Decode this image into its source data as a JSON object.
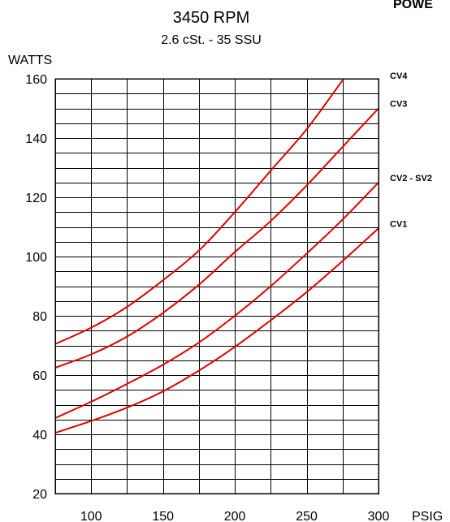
{
  "header": {
    "cutoff_text": "POWE"
  },
  "chart_data": {
    "type": "line",
    "title": "3450  RPM",
    "subtitle": "2.6 cSt. - 35 SSU",
    "xlabel": "PSIG",
    "ylabel": "WATTS",
    "xlim": [
      75,
      300
    ],
    "ylim": [
      20,
      160
    ],
    "x_ticks": [
      100,
      150,
      200,
      250,
      300
    ],
    "y_ticks": [
      20,
      40,
      60,
      80,
      100,
      120,
      140,
      160
    ],
    "x_grid_step": 25,
    "y_grid_step": 5,
    "grid": true,
    "line_color": "#e00000",
    "series": [
      {
        "name": "CV4",
        "points": [
          [
            75,
            70.5
          ],
          [
            100,
            76
          ],
          [
            125,
            83
          ],
          [
            150,
            92
          ],
          [
            175,
            102
          ],
          [
            200,
            115
          ],
          [
            225,
            129
          ],
          [
            250,
            143
          ],
          [
            275,
            159.5
          ]
        ]
      },
      {
        "name": "CV3",
        "points": [
          [
            75,
            62.5
          ],
          [
            100,
            67
          ],
          [
            125,
            73
          ],
          [
            150,
            81
          ],
          [
            175,
            90.5
          ],
          [
            200,
            101.5
          ],
          [
            225,
            112
          ],
          [
            250,
            124
          ],
          [
            275,
            137
          ],
          [
            300,
            150
          ]
        ]
      },
      {
        "name": "CV2 - SV2",
        "points": [
          [
            75,
            45.5
          ],
          [
            100,
            51
          ],
          [
            125,
            57
          ],
          [
            150,
            63.5
          ],
          [
            175,
            71
          ],
          [
            200,
            80
          ],
          [
            225,
            90
          ],
          [
            250,
            101
          ],
          [
            275,
            112.5
          ],
          [
            300,
            125
          ]
        ]
      },
      {
        "name": "CV1",
        "points": [
          [
            75,
            40.5
          ],
          [
            100,
            44.5
          ],
          [
            125,
            49
          ],
          [
            150,
            54.5
          ],
          [
            175,
            61.5
          ],
          [
            200,
            69.5
          ],
          [
            225,
            78.5
          ],
          [
            250,
            88
          ],
          [
            275,
            98.5
          ],
          [
            300,
            109.5
          ]
        ]
      }
    ]
  }
}
